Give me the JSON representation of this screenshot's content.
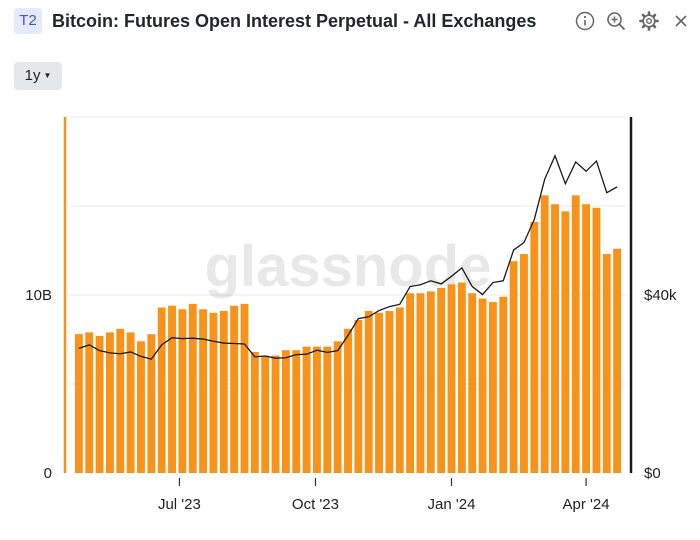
{
  "header": {
    "badge": "T2",
    "title": "Bitcoin: Futures Open Interest Perpetual - All Exchanges",
    "icons": [
      "info-icon",
      "zoom-in-icon",
      "gear-icon",
      "close-icon"
    ]
  },
  "toolbar": {
    "resolution_label": "1y"
  },
  "watermark": "glassnode",
  "colors": {
    "bars": "#f7931a",
    "price_line": "#1a1a1a",
    "grid": "#e8e8e8",
    "axis_left": "#f7931a",
    "axis_right": "#1a1a1a"
  },
  "chart_data": {
    "type": "bar",
    "x_tick_labels": [
      "Jul '23",
      "Oct '23",
      "Jan '24",
      "Apr '24"
    ],
    "y_left_tick_labels": [
      "0",
      "10B"
    ],
    "y_right_tick_labels": [
      "$0",
      "$40k"
    ],
    "ylim_left": [
      0,
      20000000000
    ],
    "ylim_right": [
      0,
      80000
    ],
    "grid": true,
    "series": [
      {
        "kind": "bars",
        "axis": "left",
        "points": [
          [
            "2023-04-24",
            7800000000.0
          ],
          [
            "2023-05-01",
            7900000000.0
          ],
          [
            "2023-05-08",
            7700000000.0
          ],
          [
            "2023-05-15",
            7900000000.0
          ],
          [
            "2023-05-22",
            8100000000.0
          ],
          [
            "2023-05-29",
            7900000000.0
          ],
          [
            "2023-06-05",
            7400000000.0
          ],
          [
            "2023-06-12",
            7800000000.0
          ],
          [
            "2023-06-19",
            9300000000.0
          ],
          [
            "2023-06-26",
            9400000000.0
          ],
          [
            "2023-07-03",
            9200000000.0
          ],
          [
            "2023-07-10",
            9500000000.0
          ],
          [
            "2023-07-17",
            9200000000.0
          ],
          [
            "2023-07-24",
            9000000000.0
          ],
          [
            "2023-07-31",
            9100000000.0
          ],
          [
            "2023-08-07",
            9400000000.0
          ],
          [
            "2023-08-14",
            9500000000.0
          ],
          [
            "2023-08-21",
            6800000000.0
          ],
          [
            "2023-08-28",
            6600000000.0
          ],
          [
            "2023-09-04",
            6600000000.0
          ],
          [
            "2023-09-11",
            6900000000.0
          ],
          [
            "2023-09-18",
            6900000000.0
          ],
          [
            "2023-09-25",
            7100000000.0
          ],
          [
            "2023-10-02",
            7100000000.0
          ],
          [
            "2023-10-09",
            7100000000.0
          ],
          [
            "2023-10-16",
            7400000000.0
          ],
          [
            "2023-10-23",
            8100000000.0
          ],
          [
            "2023-10-30",
            8600000000.0
          ],
          [
            "2023-11-06",
            9100000000.0
          ],
          [
            "2023-11-13",
            9000000000.0
          ],
          [
            "2023-11-20",
            9100000000.0
          ],
          [
            "2023-11-27",
            9300000000.0
          ],
          [
            "2023-12-04",
            10100000000.0
          ],
          [
            "2023-12-11",
            10100000000.0
          ],
          [
            "2023-12-18",
            10200000000.0
          ],
          [
            "2023-12-25",
            10400000000.0
          ],
          [
            "2024-01-01",
            10600000000.0
          ],
          [
            "2024-01-08",
            10700000000.0
          ],
          [
            "2024-01-15",
            10100000000.0
          ],
          [
            "2024-01-22",
            9800000000.0
          ],
          [
            "2024-01-29",
            9600000000.0
          ],
          [
            "2024-02-05",
            9900000000.0
          ],
          [
            "2024-02-12",
            11900000000.0
          ],
          [
            "2024-02-19",
            12300000000.0
          ],
          [
            "2024-02-26",
            14100000000.0
          ],
          [
            "2024-03-04",
            15600000000.0
          ],
          [
            "2024-03-11",
            15100000000.0
          ],
          [
            "2024-03-18",
            14700000000.0
          ],
          [
            "2024-03-25",
            15600000000.0
          ],
          [
            "2024-04-01",
            15100000000.0
          ],
          [
            "2024-04-08",
            14900000000.0
          ],
          [
            "2024-04-15",
            12300000000.0
          ],
          [
            "2024-04-22",
            12600000000.0
          ]
        ]
      },
      {
        "kind": "line",
        "axis": "right",
        "points": [
          [
            "2023-04-24",
            28000
          ],
          [
            "2023-05-01",
            28800
          ],
          [
            "2023-05-08",
            27500
          ],
          [
            "2023-05-15",
            27000
          ],
          [
            "2023-05-22",
            26800
          ],
          [
            "2023-05-29",
            27200
          ],
          [
            "2023-06-05",
            26200
          ],
          [
            "2023-06-12",
            25600
          ],
          [
            "2023-06-19",
            28800
          ],
          [
            "2023-06-26",
            30400
          ],
          [
            "2023-07-03",
            30200
          ],
          [
            "2023-07-10",
            30300
          ],
          [
            "2023-07-17",
            30100
          ],
          [
            "2023-07-24",
            29600
          ],
          [
            "2023-07-31",
            29200
          ],
          [
            "2023-08-07",
            29100
          ],
          [
            "2023-08-14",
            29000
          ],
          [
            "2023-08-21",
            26100
          ],
          [
            "2023-08-28",
            26300
          ],
          [
            "2023-09-04",
            25800
          ],
          [
            "2023-09-11",
            25900
          ],
          [
            "2023-09-18",
            26600
          ],
          [
            "2023-09-25",
            26700
          ],
          [
            "2023-10-02",
            27600
          ],
          [
            "2023-10-09",
            27100
          ],
          [
            "2023-10-16",
            27500
          ],
          [
            "2023-10-23",
            30900
          ],
          [
            "2023-10-30",
            34700
          ],
          [
            "2023-11-06",
            35100
          ],
          [
            "2023-11-13",
            36500
          ],
          [
            "2023-11-20",
            37400
          ],
          [
            "2023-11-27",
            37900
          ],
          [
            "2023-12-04",
            41900
          ],
          [
            "2023-12-11",
            42300
          ],
          [
            "2023-12-18",
            43200
          ],
          [
            "2023-12-25",
            42500
          ],
          [
            "2024-01-01",
            44200
          ],
          [
            "2024-01-08",
            46100
          ],
          [
            "2024-01-15",
            41900
          ],
          [
            "2024-01-22",
            40100
          ],
          [
            "2024-01-29",
            42800
          ],
          [
            "2024-02-05",
            43200
          ],
          [
            "2024-02-12",
            50100
          ],
          [
            "2024-02-19",
            51800
          ],
          [
            "2024-02-26",
            57000
          ],
          [
            "2024-03-04",
            66000
          ],
          [
            "2024-03-11",
            71300
          ],
          [
            "2024-03-18",
            65000
          ],
          [
            "2024-03-25",
            69900
          ],
          [
            "2024-04-01",
            67800
          ],
          [
            "2024-04-08",
            70100
          ],
          [
            "2024-04-15",
            63000
          ],
          [
            "2024-04-22",
            64300
          ]
        ]
      }
    ]
  }
}
